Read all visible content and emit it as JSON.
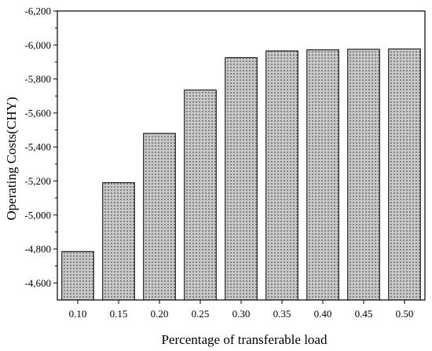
{
  "chart_data": {
    "type": "bar",
    "title": "",
    "xlabel": "Percentage of transferable load",
    "ylabel": "Operating Costs(CHY)",
    "categories": [
      "0.10",
      "0.15",
      "0.20",
      "0.25",
      "0.30",
      "0.35",
      "0.40",
      "0.45",
      "0.50"
    ],
    "values": [
      -4785,
      -5190,
      -5480,
      -5735,
      -5925,
      -5965,
      -5972,
      -5975,
      -5977
    ],
    "ylim": [
      -4500,
      -6200
    ],
    "y_axis_reversed": true,
    "yticks": [
      -4600,
      -4800,
      -5000,
      -5200,
      -5400,
      -5600,
      -5800,
      -6000,
      -6200
    ],
    "ytick_labels": [
      "-4,600",
      "-4,800",
      "-5,000",
      "-5,200",
      "-5,400",
      "-5,600",
      "-5,800",
      "-6,000",
      "-6,200"
    ],
    "bar_fill": "#c8c8c8",
    "bar_pattern": "dotted",
    "grid": false,
    "legend": "none"
  }
}
